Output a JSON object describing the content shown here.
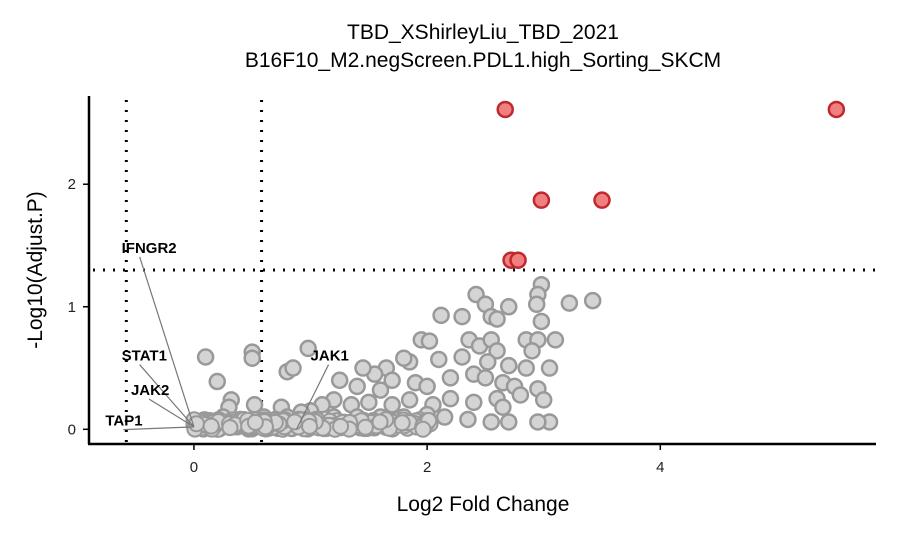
{
  "chart_data": {
    "type": "scatter",
    "title": "TBD_XShirleyLiu_TBD_2021",
    "subtitle": "B16F10_M2.negScreen.PDL1.high_Sorting_SKCM",
    "xlabel": "Log2 Fold Change",
    "ylabel": "-Log10(Adjust.P)",
    "xlim": [
      -0.9,
      5.85
    ],
    "ylim": [
      -0.12,
      2.72
    ],
    "x_ticks": [
      0,
      2,
      4
    ],
    "y_ticks": [
      0,
      1,
      2
    ],
    "grid": false,
    "legend": "none",
    "thresholds": {
      "x": [
        -0.58,
        0.58
      ],
      "y": 1.3
    },
    "colors": {
      "significant_fill": "#f08080",
      "significant_stroke": "#c0282e",
      "nonsignificant_fill": "#d4d4d4",
      "nonsignificant_stroke": "#999999"
    },
    "significant_points": [
      {
        "x": 2.67,
        "y": 2.61
      },
      {
        "x": 5.51,
        "y": 2.61
      },
      {
        "x": 2.98,
        "y": 1.87
      },
      {
        "x": 3.5,
        "y": 1.87
      },
      {
        "x": 2.72,
        "y": 1.38
      },
      {
        "x": 2.78,
        "y": 1.38
      }
    ],
    "nonsignificant_points": [
      {
        "x": 2.98,
        "y": 1.18
      },
      {
        "x": 2.95,
        "y": 1.1
      },
      {
        "x": 2.94,
        "y": 1.02
      },
      {
        "x": 2.7,
        "y": 1.0
      },
      {
        "x": 3.42,
        "y": 1.05
      },
      {
        "x": 3.22,
        "y": 1.03
      },
      {
        "x": 2.42,
        "y": 1.1
      },
      {
        "x": 2.5,
        "y": 1.02
      },
      {
        "x": 2.55,
        "y": 0.92
      },
      {
        "x": 2.98,
        "y": 0.88
      },
      {
        "x": 2.3,
        "y": 0.92
      },
      {
        "x": 2.12,
        "y": 0.93
      },
      {
        "x": 2.6,
        "y": 0.9
      },
      {
        "x": 1.95,
        "y": 0.73
      },
      {
        "x": 2.02,
        "y": 0.72
      },
      {
        "x": 2.36,
        "y": 0.73
      },
      {
        "x": 2.45,
        "y": 0.68
      },
      {
        "x": 2.55,
        "y": 0.73
      },
      {
        "x": 2.6,
        "y": 0.64
      },
      {
        "x": 2.85,
        "y": 0.73
      },
      {
        "x": 2.95,
        "y": 0.73
      },
      {
        "x": 3.1,
        "y": 0.73
      },
      {
        "x": 2.9,
        "y": 0.64
      },
      {
        "x": 3.05,
        "y": 0.5
      },
      {
        "x": 2.85,
        "y": 0.5
      },
      {
        "x": 2.7,
        "y": 0.52
      },
      {
        "x": 2.52,
        "y": 0.55
      },
      {
        "x": 2.3,
        "y": 0.59
      },
      {
        "x": 2.1,
        "y": 0.57
      },
      {
        "x": 1.85,
        "y": 0.55
      },
      {
        "x": 1.8,
        "y": 0.58
      },
      {
        "x": 1.65,
        "y": 0.5
      },
      {
        "x": 1.7,
        "y": 0.4
      },
      {
        "x": 1.55,
        "y": 0.45
      },
      {
        "x": 1.45,
        "y": 0.5
      },
      {
        "x": 1.6,
        "y": 0.32
      },
      {
        "x": 1.4,
        "y": 0.35
      },
      {
        "x": 1.25,
        "y": 0.4
      },
      {
        "x": 1.9,
        "y": 0.38
      },
      {
        "x": 2.0,
        "y": 0.35
      },
      {
        "x": 2.2,
        "y": 0.42
      },
      {
        "x": 2.4,
        "y": 0.45
      },
      {
        "x": 2.5,
        "y": 0.42
      },
      {
        "x": 2.65,
        "y": 0.38
      },
      {
        "x": 2.75,
        "y": 0.35
      },
      {
        "x": 2.8,
        "y": 0.28
      },
      {
        "x": 2.95,
        "y": 0.33
      },
      {
        "x": 3.0,
        "y": 0.24
      },
      {
        "x": 2.6,
        "y": 0.25
      },
      {
        "x": 2.4,
        "y": 0.22
      },
      {
        "x": 2.2,
        "y": 0.25
      },
      {
        "x": 2.05,
        "y": 0.2
      },
      {
        "x": 1.85,
        "y": 0.24
      },
      {
        "x": 1.7,
        "y": 0.2
      },
      {
        "x": 1.5,
        "y": 0.22
      },
      {
        "x": 1.35,
        "y": 0.2
      },
      {
        "x": 1.2,
        "y": 0.24
      },
      {
        "x": 1.1,
        "y": 0.2
      },
      {
        "x": 1.0,
        "y": 0.15
      },
      {
        "x": 0.8,
        "y": 0.47
      },
      {
        "x": 0.85,
        "y": 0.5
      },
      {
        "x": 0.98,
        "y": 0.66
      },
      {
        "x": 0.5,
        "y": 0.63
      },
      {
        "x": 0.5,
        "y": 0.58
      },
      {
        "x": 0.1,
        "y": 0.59
      },
      {
        "x": 0.2,
        "y": 0.39
      },
      {
        "x": 0.32,
        "y": 0.24
      },
      {
        "x": 0.3,
        "y": 0.18
      },
      {
        "x": 0.52,
        "y": 0.2
      },
      {
        "x": 0.75,
        "y": 0.18
      },
      {
        "x": 0.8,
        "y": 0.1
      },
      {
        "x": 0.92,
        "y": 0.14
      },
      {
        "x": 0.9,
        "y": 0.08
      },
      {
        "x": 3.05,
        "y": 0.06
      },
      {
        "x": 2.95,
        "y": 0.06
      },
      {
        "x": 2.7,
        "y": 0.06
      },
      {
        "x": 2.55,
        "y": 0.06
      },
      {
        "x": 2.65,
        "y": 0.18
      },
      {
        "x": 2.35,
        "y": 0.08
      },
      {
        "x": 2.15,
        "y": 0.1
      },
      {
        "x": 2.0,
        "y": 0.12
      },
      {
        "x": 1.8,
        "y": 0.1
      },
      {
        "x": 1.6,
        "y": 0.1
      },
      {
        "x": 1.4,
        "y": 0.1
      },
      {
        "x": 1.2,
        "y": 0.1
      },
      {
        "x": 1.05,
        "y": 0.08
      },
      {
        "x": 0.7,
        "y": 0.08
      },
      {
        "x": 0.6,
        "y": 0.1
      },
      {
        "x": 0.4,
        "y": 0.08
      },
      {
        "x": 0.25,
        "y": 0.1
      },
      {
        "x": 0.15,
        "y": 0.06
      }
    ],
    "dense_cluster": {
      "x": [
        0.0,
        2.1
      ],
      "y": [
        0.0,
        0.08
      ],
      "count": 260
    },
    "annotations": [
      {
        "label": "IFNGR2",
        "point": {
          "x": 0.0,
          "y": 0.02
        },
        "label_pos": {
          "x": -0.62,
          "y": 1.44
        }
      },
      {
        "label": "STAT1",
        "point": {
          "x": 0.0,
          "y": 0.02
        },
        "label_pos": {
          "x": -0.62,
          "y": 0.56
        }
      },
      {
        "label": "JAK2",
        "point": {
          "x": 0.0,
          "y": 0.02
        },
        "label_pos": {
          "x": -0.54,
          "y": 0.28
        }
      },
      {
        "label": "TAP1",
        "point": {
          "x": 0.0,
          "y": 0.02
        },
        "label_pos": {
          "x": -0.76,
          "y": 0.03
        }
      },
      {
        "label": "JAK1",
        "point": {
          "x": 0.88,
          "y": 0.0
        },
        "label_pos": {
          "x": 1.0,
          "y": 0.56
        }
      }
    ]
  }
}
